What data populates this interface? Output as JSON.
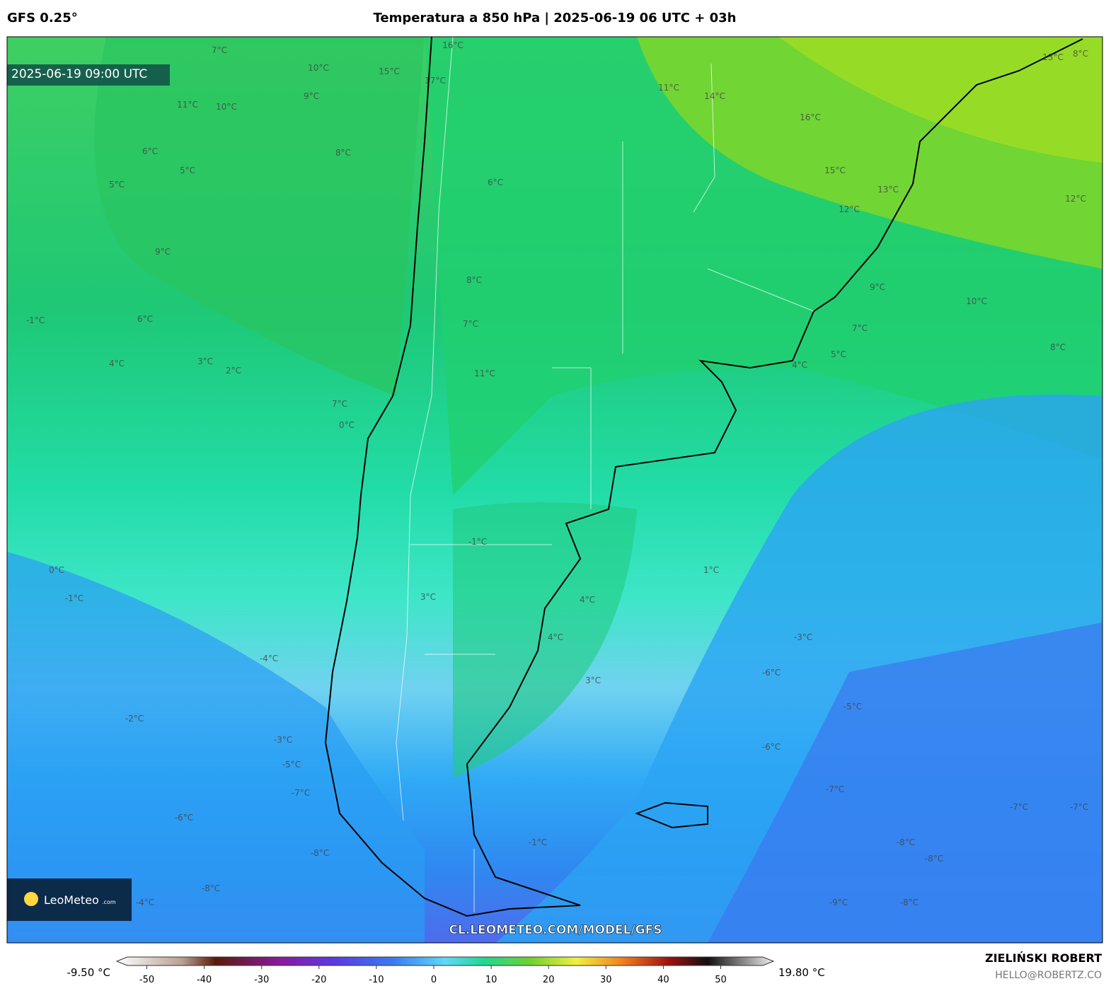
{
  "header": {
    "model": "GFS 0.25°",
    "title": "Temperatura a 850 hPa | 2025-06-19 06 UTC + 03h"
  },
  "map": {
    "valid_time": "2025-06-19 09:00 UTC",
    "watermark": "CL.LEOMETEO.COM/MODEL/GFS",
    "logo": "LeoMeteo",
    "logo_suffix": ".com",
    "contour_labels": [
      "7°C",
      "10°C",
      "15°C",
      "16°C",
      "17°C",
      "11°C",
      "10°C",
      "8°C",
      "9°C",
      "6°C",
      "5°C",
      "9°C",
      "6°C",
      "5°C",
      "3°C",
      "4°C",
      "2°C",
      "7°C",
      "0°C",
      "11°C",
      "7°C",
      "6°C",
      "8°C",
      "11°C",
      "14°C",
      "16°C",
      "15°C",
      "13°C",
      "12°C",
      "12°C",
      "9°C",
      "10°C",
      "7°C",
      "5°C",
      "4°C",
      "8°C",
      "1°C",
      "4°C",
      "4°C",
      "3°C",
      "3°C",
      "-1°C",
      "-1°C",
      "0°C",
      "-1°C",
      "-4°C",
      "-2°C",
      "-3°C",
      "-5°C",
      "-7°C",
      "-6°C",
      "-8°C",
      "-8°C",
      "-4°C",
      "-3°C",
      "-6°C",
      "-5°C",
      "-6°C",
      "-7°C",
      "-8°C",
      "-9°C",
      "-8°C",
      "-8°C",
      "-7°C",
      "-7°C",
      "-1°C",
      "8°C",
      "13°C"
    ]
  },
  "colorbar": {
    "min_label": "-9.50 °C",
    "max_label": "19.80 °C",
    "ticks": [
      -50,
      -40,
      -30,
      -20,
      -10,
      0,
      10,
      20,
      30,
      40,
      50
    ]
  },
  "footer": {
    "author": "ZIELIŃSKI ROBERT",
    "email": "HELLO@ROBERTZ.CO"
  }
}
